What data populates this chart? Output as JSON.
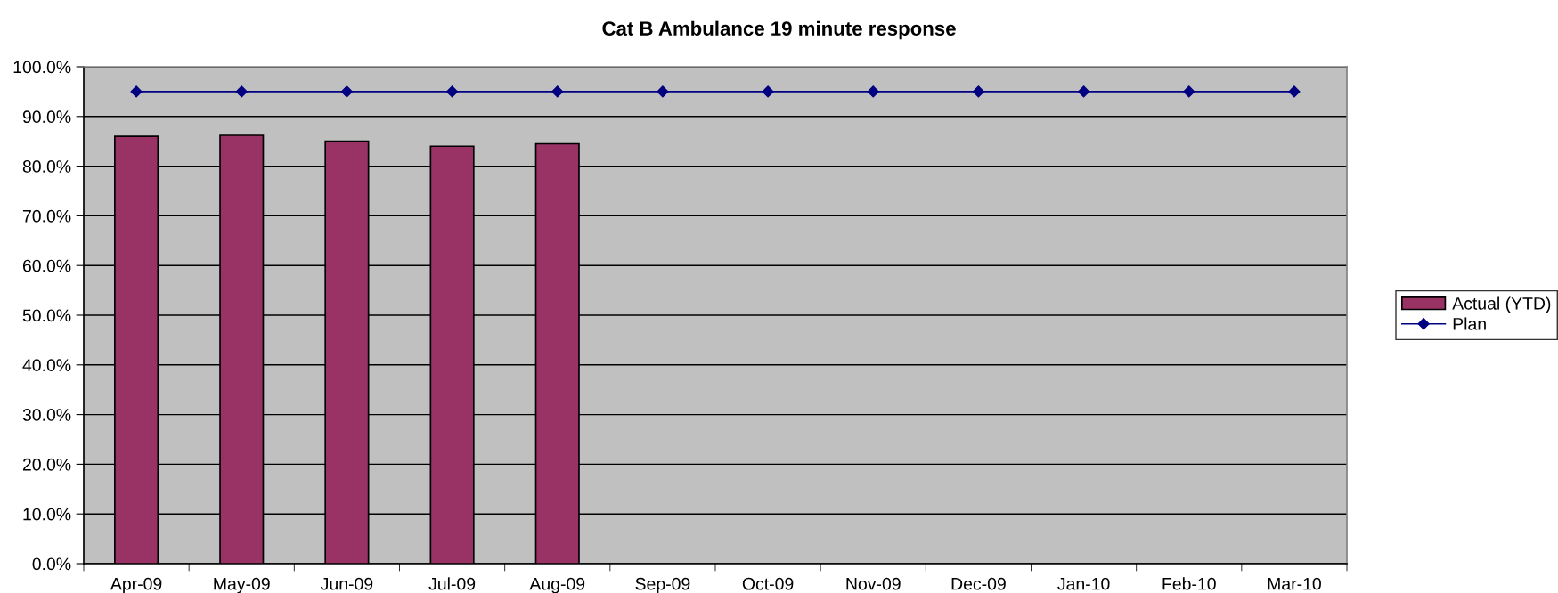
{
  "chart_data": {
    "type": "bar",
    "title": "Cat B Ambulance 19 minute response",
    "categories": [
      "Apr-09",
      "May-09",
      "Jun-09",
      "Jul-09",
      "Aug-09",
      "Sep-09",
      "Oct-09",
      "Nov-09",
      "Dec-09",
      "Jan-10",
      "Feb-10",
      "Mar-10"
    ],
    "series": [
      {
        "name": "Actual (YTD)",
        "color": "#993366",
        "values": [
          86.0,
          86.2,
          85.0,
          84.0,
          84.5,
          null,
          null,
          null,
          null,
          null,
          null,
          null
        ]
      },
      {
        "name": "Plan",
        "type": "line",
        "color": "#000080",
        "marker": "diamond",
        "line_style": "solid",
        "values": [
          95.0,
          95.0,
          95.0,
          95.0,
          95.0,
          95.0,
          95.0,
          95.0,
          95.0,
          95.0,
          95.0,
          95.0
        ]
      }
    ],
    "ylim": [
      0,
      100
    ],
    "yticks": [
      {
        "value": 0,
        "label": "0.0%"
      },
      {
        "value": 10,
        "label": "10.0%"
      },
      {
        "value": 20,
        "label": "20.0%"
      },
      {
        "value": 30,
        "label": "30.0%"
      },
      {
        "value": 40,
        "label": "40.0%"
      },
      {
        "value": 50,
        "label": "50.0%"
      },
      {
        "value": 60,
        "label": "60.0%"
      },
      {
        "value": 70,
        "label": "70.0%"
      },
      {
        "value": 80,
        "label": "80.0%"
      },
      {
        "value": 90,
        "label": "90.0%"
      },
      {
        "value": 100,
        "label": "100.0%"
      }
    ],
    "grid": "y",
    "legend": "right"
  }
}
